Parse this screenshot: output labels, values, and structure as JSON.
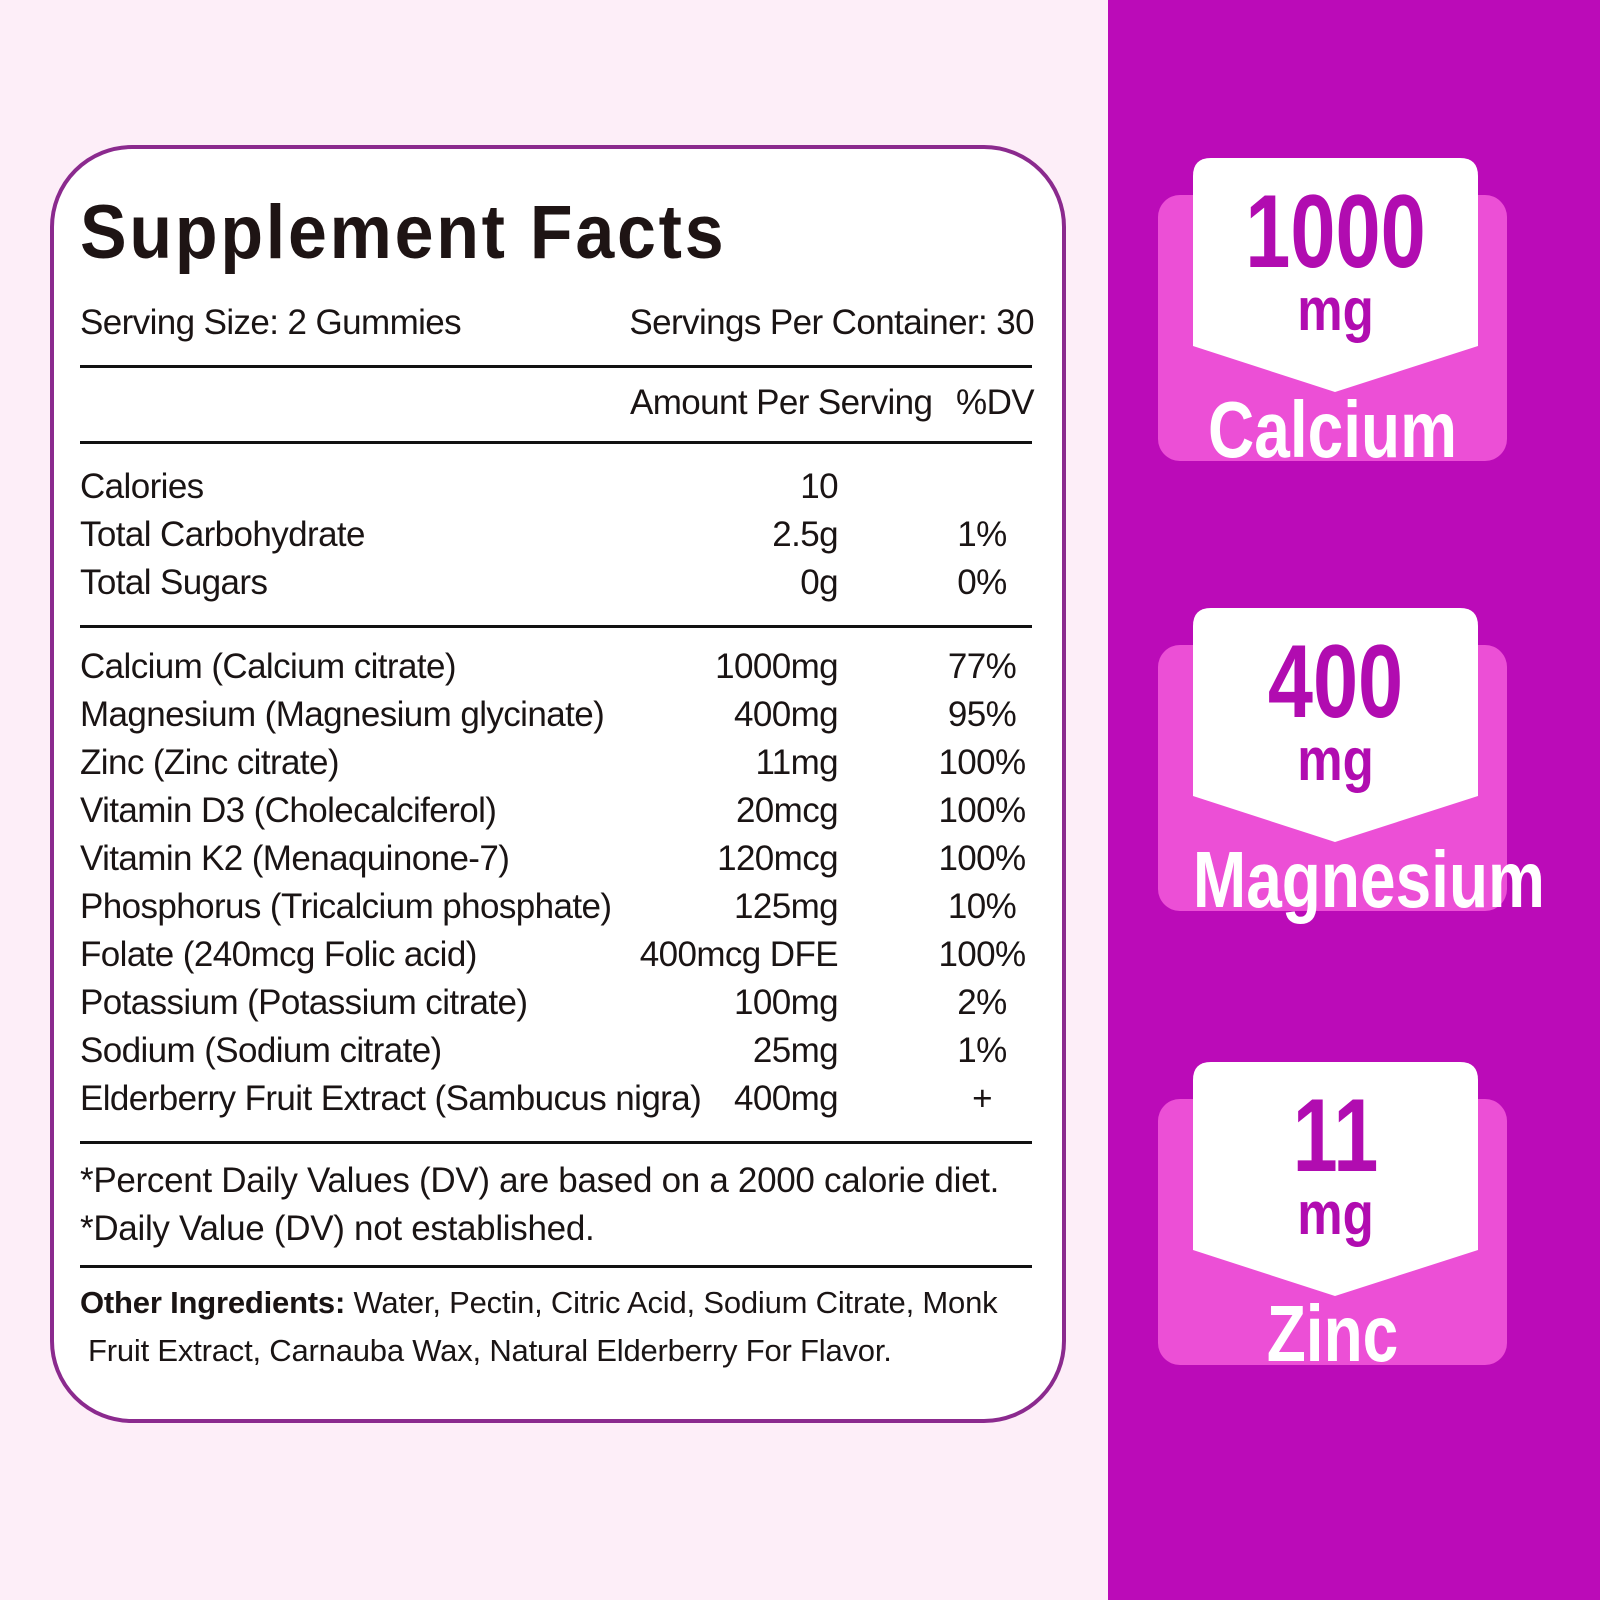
{
  "colors": {
    "page_bg": "#fdeef8",
    "side_panel": "#bb0bb8",
    "badge_back": "#ec4fd6",
    "badge_text": "#b10cb0",
    "card_border": "#8b2a8e"
  },
  "facts": {
    "title": "Supplement Facts",
    "serving_size": "Serving Size: 2 Gummies",
    "servings_per_container": "Servings Per Container: 30",
    "amount_header": "Amount Per Serving",
    "dv_header": "%DV",
    "basic": [
      {
        "name": "Calories",
        "amount": "10",
        "dv": ""
      },
      {
        "name": "Total Carbohydrate",
        "amount": "2.5g",
        "dv": "1%"
      },
      {
        "name": "Total Sugars",
        "amount": "0g",
        "dv": "0%"
      }
    ],
    "nutrients": [
      {
        "name": "Calcium (Calcium citrate)",
        "amount": "1000mg",
        "dv": "77%"
      },
      {
        "name": "Magnesium (Magnesium glycinate)",
        "amount": "400mg",
        "dv": "95%"
      },
      {
        "name": "Zinc (Zinc citrate)",
        "amount": "11mg",
        "dv": "100%"
      },
      {
        "name": "Vitamin D3 (Cholecalciferol)",
        "amount": "20mcg",
        "dv": "100%"
      },
      {
        "name": "Vitamin K2 (Menaquinone-7)",
        "amount": "120mcg",
        "dv": "100%"
      },
      {
        "name": "Phosphorus (Tricalcium phosphate)",
        "amount": "125mg",
        "dv": "10%"
      },
      {
        "name": "Folate (240mcg Folic acid)",
        "amount": "400mcg DFE",
        "dv": "100%"
      },
      {
        "name": "Potassium (Potassium citrate)",
        "amount": "100mg",
        "dv": "2%"
      },
      {
        "name": "Sodium (Sodium citrate)",
        "amount": "25mg",
        "dv": "1%"
      },
      {
        "name": "Elderberry Fruit Extract (Sambucus nigra)",
        "amount": "400mg",
        "dv": "+"
      }
    ],
    "footnote_1": "*Percent Daily Values (DV) are based on a 2000 calorie diet.",
    "footnote_2": "*Daily Value (DV) not established.",
    "other_label": "Other Ingredients:",
    "other_line_1": " Water, Pectin, Citric Acid, Sodium Citrate, Monk",
    "other_line_2": "Fruit Extract, Carnauba Wax, Natural Elderberry For Flavor."
  },
  "badges": [
    {
      "value": "1000",
      "unit": "mg",
      "label": "Calcium"
    },
    {
      "value": "400",
      "unit": "mg",
      "label": "Magnesium"
    },
    {
      "value": "11",
      "unit": "mg",
      "label": "Zinc"
    }
  ]
}
